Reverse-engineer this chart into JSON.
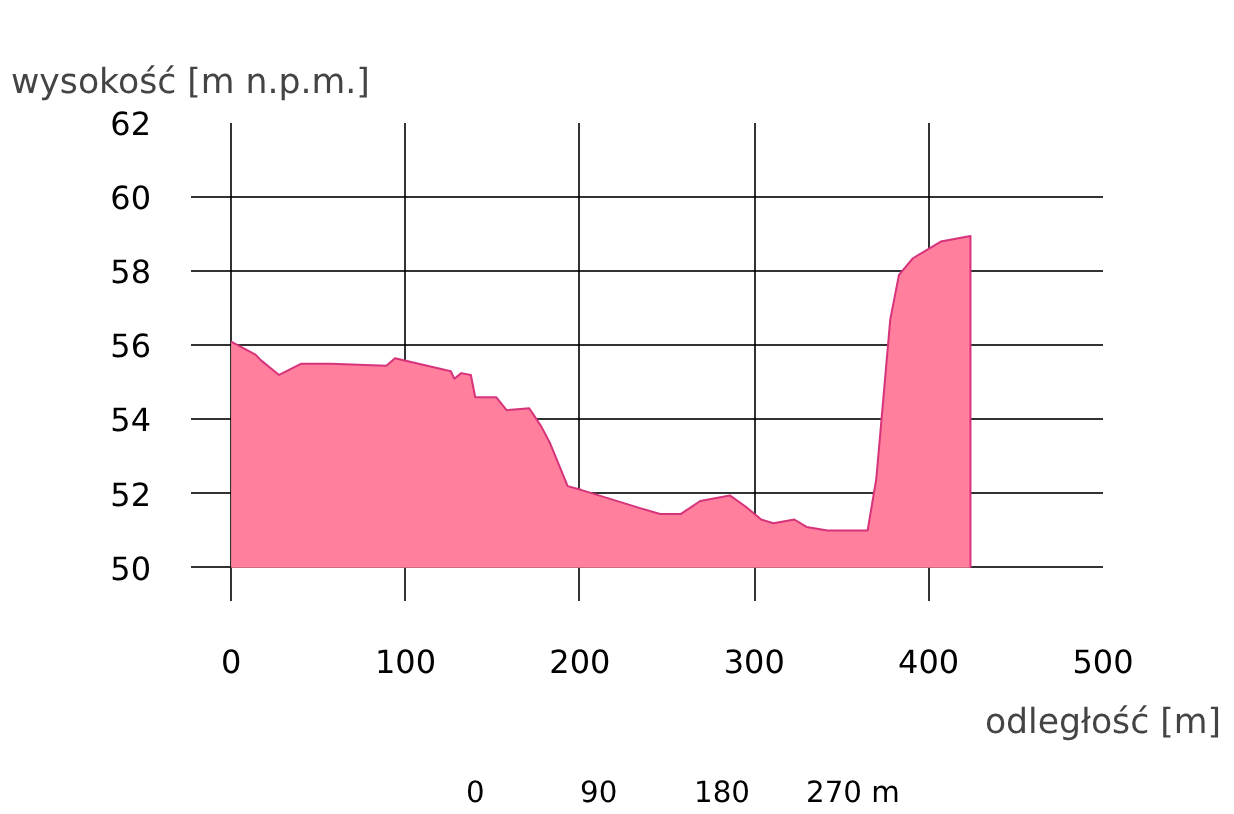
{
  "chart_data": {
    "type": "area",
    "title": "wysokość [m n.p.m.]",
    "xlabel": "odległość [m]",
    "x": [
      0,
      14,
      17,
      27.5,
      40,
      57,
      89,
      94,
      126,
      128,
      132,
      137.5,
      140,
      152,
      158,
      171,
      178,
      183,
      193,
      200.6,
      235,
      246,
      258,
      269,
      286,
      295,
      304,
      311,
      323,
      330,
      342,
      365,
      370,
      378,
      383,
      391,
      407,
      424
    ],
    "series": [
      {
        "color": "#ff7f9c",
        "values": [
          56.1,
          55.75,
          55.6,
          55.2,
          55.5,
          55.5,
          55.45,
          55.65,
          55.3,
          55.1,
          55.25,
          55.2,
          54.6,
          54.6,
          54.25,
          54.3,
          53.8,
          53.35,
          52.2,
          52.1,
          51.6,
          51.45,
          51.45,
          51.8,
          51.95,
          51.65,
          51.3,
          51.2,
          51.3,
          51.1,
          51.0,
          51.0,
          52.4,
          56.7,
          57.9,
          58.35,
          58.8,
          58.95
        ]
      }
    ],
    "xlim": [
      -23,
      500
    ],
    "ylim": [
      49.1,
      62
    ],
    "xticks": [
      0,
      100,
      200,
      300,
      400,
      500
    ],
    "yticks": [
      50,
      52,
      54,
      56,
      58,
      60,
      62
    ],
    "grid": true,
    "annotations": [
      "0",
      "90",
      "180",
      "270 m"
    ]
  }
}
